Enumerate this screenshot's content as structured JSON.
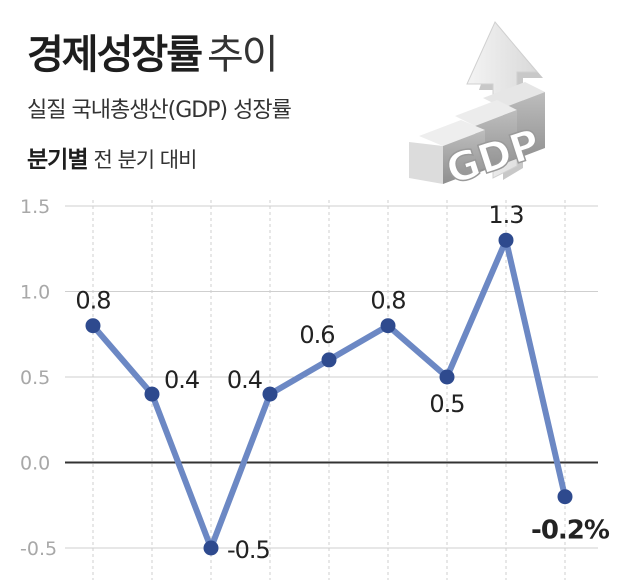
{
  "header": {
    "title_main": "경제성장률",
    "title_sub": "추이",
    "subtitle": "실질 국내총생산(GDP) 성장률",
    "note_bold": "분기별",
    "note_normal": "전 분기 대비"
  },
  "illustration": {
    "icon": "gdp-3d-letters-arrow-icon",
    "text": "GDP"
  },
  "colors": {
    "line": "#6c88c4",
    "marker": "#2e4a8e",
    "grid": "#cfcfcf",
    "zero_line": "#333333",
    "tick_label": "#a8a8a8",
    "data_label": "#222222"
  },
  "chart_data": {
    "type": "line",
    "title": "경제성장률 추이",
    "subtitle": "실질 국내총생산(GDP) 성장률",
    "ylabel": "",
    "xlabel": "",
    "ylim": [
      -0.5,
      1.5
    ],
    "yticks": [
      "1.5",
      "1.0",
      "0.5",
      "0.0",
      "-0.5"
    ],
    "ytick_values": [
      1.5,
      1.0,
      0.5,
      0.0,
      -0.5
    ],
    "grid": "vertical dashed lines at each point, horizontal lines at y ticks",
    "series": [
      {
        "values": [
          0.8,
          0.4,
          -0.5,
          0.4,
          0.6,
          0.8,
          0.5,
          1.3,
          -0.2
        ],
        "labels": [
          "0.8",
          "0.4",
          "-0.5",
          "0.4",
          "0.6",
          "0.8",
          "0.5",
          "1.3",
          "-0.2%"
        ]
      }
    ]
  }
}
